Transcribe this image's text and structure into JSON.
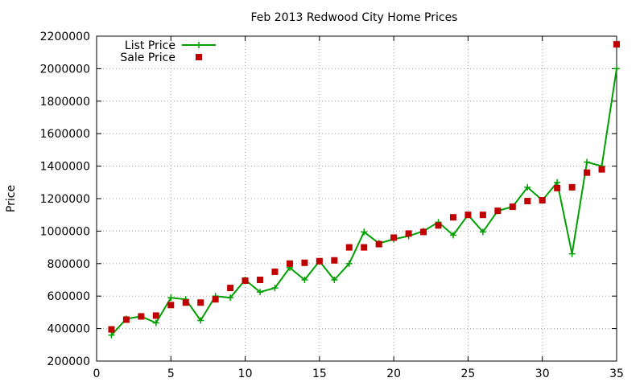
{
  "chart_data": {
    "type": "line",
    "title": "Feb 2013 Redwood City Home Prices",
    "xlabel": "",
    "ylabel": "Price",
    "xlim": [
      0,
      35
    ],
    "ylim": [
      200000,
      2200000
    ],
    "xticks": [
      0,
      5,
      10,
      15,
      20,
      25,
      30,
      35
    ],
    "yticks": [
      200000,
      400000,
      600000,
      800000,
      1000000,
      1200000,
      1400000,
      1600000,
      1800000,
      2000000,
      2200000
    ],
    "grid": true,
    "legend_position": "top-left",
    "colors": {
      "list": "#00a000",
      "sale": "#c00000"
    },
    "series": [
      {
        "name": "List Price",
        "style": "line-points",
        "x": [
          1,
          2,
          3,
          4,
          5,
          6,
          7,
          8,
          9,
          10,
          11,
          12,
          13,
          14,
          15,
          16,
          17,
          18,
          19,
          20,
          21,
          22,
          23,
          24,
          25,
          26,
          27,
          28,
          29,
          30,
          31,
          32,
          33,
          34,
          35
        ],
        "y": [
          360000,
          460000,
          475000,
          435000,
          590000,
          580000,
          450000,
          600000,
          590000,
          700000,
          625000,
          650000,
          775000,
          700000,
          815000,
          700000,
          800000,
          995000,
          925000,
          950000,
          970000,
          1000000,
          1055000,
          975000,
          1100000,
          995000,
          1125000,
          1150000,
          1270000,
          1190000,
          1300000,
          860000,
          1425000,
          1400000,
          2000000
        ]
      },
      {
        "name": "Sale Price",
        "style": "points",
        "x": [
          1,
          2,
          3,
          4,
          5,
          6,
          7,
          8,
          9,
          10,
          11,
          12,
          13,
          14,
          15,
          16,
          17,
          18,
          19,
          20,
          21,
          22,
          23,
          24,
          25,
          26,
          27,
          28,
          29,
          30,
          31,
          32,
          33,
          34,
          35
        ],
        "y": [
          395000,
          455000,
          475000,
          480000,
          545000,
          560000,
          560000,
          580000,
          650000,
          695000,
          700000,
          750000,
          800000,
          805000,
          815000,
          820000,
          900000,
          900000,
          920000,
          960000,
          985000,
          995000,
          1035000,
          1085000,
          1100000,
          1100000,
          1125000,
          1150000,
          1185000,
          1190000,
          1265000,
          1270000,
          1360000,
          1380000,
          2150000
        ]
      }
    ]
  }
}
